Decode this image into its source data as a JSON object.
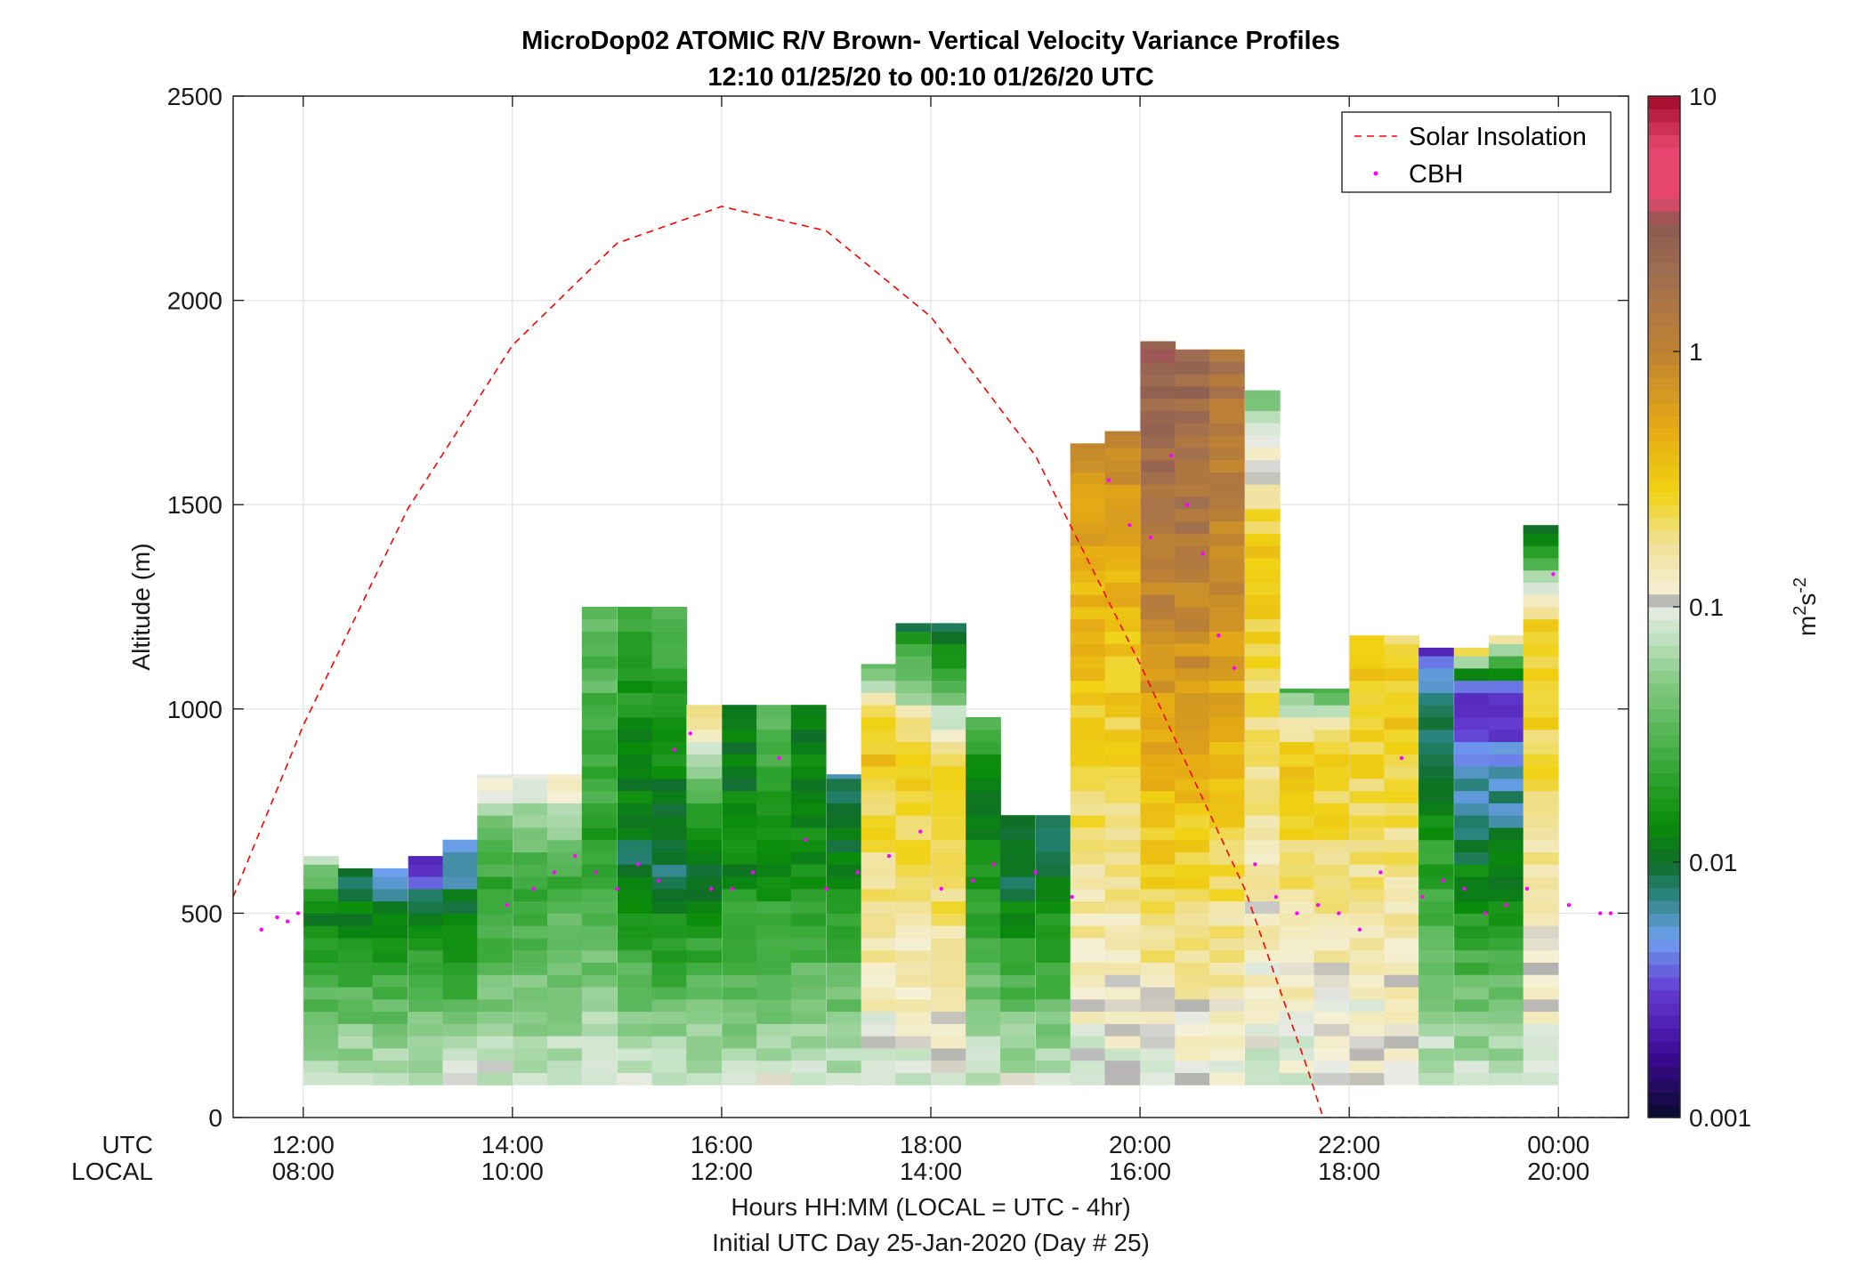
{
  "chart_data": {
    "type": "heatmap",
    "title": "MicroDop02 ATOMIC R/V Brown- Vertical Velocity Variance Profiles",
    "subtitle": "12:10 01/25/20 to 00:10 01/26/20  UTC",
    "ylabel": "Altitude (m)",
    "ylim": [
      0,
      2500
    ],
    "yticks": [
      0,
      500,
      1000,
      1500,
      2000,
      2500
    ],
    "xlim_hours": [
      11.33,
      24.67
    ],
    "xticks_hours": [
      12,
      14,
      16,
      18,
      20,
      22,
      24
    ],
    "xtick_labels_utc": [
      "12:00",
      "14:00",
      "16:00",
      "18:00",
      "20:00",
      "22:00",
      "00:00"
    ],
    "xtick_labels_local": [
      "08:00",
      "10:00",
      "12:00",
      "14:00",
      "16:00",
      "18:00",
      "20:00"
    ],
    "xaxis_row_labels": [
      "UTC",
      "LOCAL"
    ],
    "xlabel": "Hours HH:MM  (LOCAL = UTC - 4hr)",
    "footer": "Initial UTC Day 25-Jan-2020 (Day # 25)",
    "legend": {
      "placement": "top-right",
      "entries": [
        {
          "label": "Solar Insolation",
          "style": "dashed",
          "color": "#ff0000"
        },
        {
          "label": "CBH",
          "style": "dot",
          "color": "#ff00ff"
        }
      ]
    },
    "colorbar": {
      "scale": "log",
      "range": [
        0.001,
        10
      ],
      "ticks": [
        0.001,
        0.01,
        0.1,
        1,
        10
      ],
      "tick_labels": [
        "0.001",
        "0.01",
        "0.1",
        "1",
        "10"
      ],
      "units_main": "m",
      "units_sup1": "2",
      "units_mid": "s",
      "units_sup2": "-2"
    },
    "grid": true,
    "solar_insolation": {
      "units": "altitude-scaled",
      "points": [
        [
          11.33,
          540
        ],
        [
          12,
          960
        ],
        [
          13,
          1490
        ],
        [
          14,
          1890
        ],
        [
          15,
          2140
        ],
        [
          16,
          2230
        ],
        [
          17,
          2170
        ],
        [
          18,
          1960
        ],
        [
          19,
          1620
        ],
        [
          20,
          1110
        ],
        [
          21,
          560
        ],
        [
          21.6,
          120
        ],
        [
          21.75,
          0
        ],
        [
          24.67,
          0
        ]
      ]
    },
    "profile_columns": [
      {
        "center_h": 12.17,
        "base_m": 80,
        "top_m": 640,
        "peak_m": 500,
        "peak_log": -1.9,
        "top_log": -1.1
      },
      {
        "center_h": 12.5,
        "base_m": 80,
        "top_m": 610,
        "peak_m": 560,
        "peak_log": -2.05,
        "top_log": -2.0
      },
      {
        "center_h": 12.83,
        "base_m": 80,
        "top_m": 610,
        "peak_m": 520,
        "peak_log": -2.0,
        "top_log": -2.3
      },
      {
        "center_h": 13.17,
        "base_m": 80,
        "top_m": 640,
        "peak_m": 500,
        "peak_log": -1.9,
        "top_log": -2.7
      },
      {
        "center_h": 13.5,
        "base_m": 80,
        "top_m": 680,
        "peak_m": 500,
        "peak_log": -1.95,
        "top_log": -2.3
      },
      {
        "center_h": 13.83,
        "base_m": 80,
        "top_m": 840,
        "peak_m": 560,
        "peak_log": -1.7,
        "top_log": -0.95
      },
      {
        "center_h": 14.17,
        "base_m": 80,
        "top_m": 840,
        "peak_m": 560,
        "peak_log": -1.6,
        "top_log": -1.05
      },
      {
        "center_h": 14.5,
        "base_m": 80,
        "top_m": 840,
        "peak_m": 600,
        "peak_log": -1.6,
        "top_log": -0.9
      },
      {
        "center_h": 14.83,
        "base_m": 80,
        "top_m": 1250,
        "peak_m": 640,
        "peak_log": -1.7,
        "top_log": -1.4
      },
      {
        "center_h": 15.17,
        "base_m": 80,
        "top_m": 1250,
        "peak_m": 640,
        "peak_log": -2.0,
        "top_log": -1.6
      },
      {
        "center_h": 15.5,
        "base_m": 80,
        "top_m": 1250,
        "peak_m": 620,
        "peak_log": -2.1,
        "top_log": -1.5
      },
      {
        "center_h": 15.83,
        "base_m": 80,
        "top_m": 1010,
        "peak_m": 640,
        "peak_log": -2.05,
        "top_log": -0.6
      },
      {
        "center_h": 16.17,
        "base_m": 80,
        "top_m": 1010,
        "peak_m": 640,
        "peak_log": -1.9,
        "top_log": -1.9
      },
      {
        "center_h": 16.5,
        "base_m": 80,
        "top_m": 1010,
        "peak_m": 600,
        "peak_log": -1.8,
        "top_log": -1.5
      },
      {
        "center_h": 16.83,
        "base_m": 80,
        "top_m": 1010,
        "peak_m": 600,
        "peak_log": -1.8,
        "top_log": -1.9
      },
      {
        "center_h": 17.17,
        "base_m": 80,
        "top_m": 840,
        "peak_m": 600,
        "peak_log": -1.9,
        "top_log": -2.1
      },
      {
        "center_h": 17.5,
        "base_m": 80,
        "top_m": 1110,
        "peak_m": 960,
        "peak_log": -0.45,
        "top_log": -1.4
      },
      {
        "center_h": 17.83,
        "base_m": 80,
        "top_m": 1210,
        "peak_m": 900,
        "peak_log": -0.5,
        "top_log": -2.0
      },
      {
        "center_h": 18.17,
        "base_m": 80,
        "top_m": 1210,
        "peak_m": 840,
        "peak_log": -0.45,
        "top_log": -2.1
      },
      {
        "center_h": 18.5,
        "base_m": 80,
        "top_m": 980,
        "peak_m": 800,
        "peak_log": -2.05,
        "top_log": -1.5
      },
      {
        "center_h": 18.83,
        "base_m": 80,
        "top_m": 740,
        "peak_m": 600,
        "peak_log": -2.05,
        "top_log": -2.0
      },
      {
        "center_h": 19.17,
        "base_m": 80,
        "top_m": 740,
        "peak_m": 600,
        "peak_log": -2.0,
        "top_log": -2.0
      },
      {
        "center_h": 19.5,
        "base_m": 80,
        "top_m": 1650,
        "peak_m": 1300,
        "peak_log": -0.35,
        "top_log": -0.1
      },
      {
        "center_h": 19.83,
        "base_m": 80,
        "top_m": 1680,
        "peak_m": 1250,
        "peak_log": -0.4,
        "top_log": 0.0
      },
      {
        "center_h": 20.17,
        "base_m": 80,
        "top_m": 1900,
        "peak_m": 1500,
        "peak_log": 0.2,
        "top_log": 0.5
      },
      {
        "center_h": 20.5,
        "base_m": 80,
        "top_m": 1880,
        "peak_m": 1500,
        "peak_log": 0.2,
        "top_log": 0.4
      },
      {
        "center_h": 20.83,
        "base_m": 80,
        "top_m": 1880,
        "peak_m": 1400,
        "peak_log": 0.0,
        "top_log": 0.2
      },
      {
        "center_h": 21.17,
        "base_m": 80,
        "top_m": 1780,
        "peak_m": 1400,
        "peak_log": -0.5,
        "top_log": -1.3
      },
      {
        "center_h": 21.5,
        "base_m": 80,
        "top_m": 1050,
        "peak_m": 900,
        "peak_log": -0.5,
        "top_log": -1.5
      },
      {
        "center_h": 21.83,
        "base_m": 80,
        "top_m": 1050,
        "peak_m": 900,
        "peak_log": -0.5,
        "top_log": -1.5
      },
      {
        "center_h": 22.17,
        "base_m": 80,
        "top_m": 1180,
        "peak_m": 1000,
        "peak_log": -0.5,
        "top_log": -0.6
      },
      {
        "center_h": 22.5,
        "base_m": 80,
        "top_m": 1180,
        "peak_m": 1000,
        "peak_log": -0.5,
        "top_log": -0.6
      },
      {
        "center_h": 22.83,
        "base_m": 80,
        "top_m": 1150,
        "peak_m": 900,
        "peak_log": -2.0,
        "top_log": -2.5
      },
      {
        "center_h": 23.17,
        "base_m": 80,
        "top_m": 1150,
        "peak_m": 1040,
        "peak_log": -2.6,
        "top_log": -0.6
      },
      {
        "center_h": 23.5,
        "base_m": 80,
        "top_m": 1180,
        "peak_m": 1040,
        "peak_log": -2.6,
        "top_log": -0.6
      },
      {
        "center_h": 23.83,
        "base_m": 80,
        "top_m": 1450,
        "peak_m": 1200,
        "peak_log": -0.5,
        "top_log": -2.0
      }
    ],
    "cbh_points_m": [
      [
        11.6,
        460
      ],
      [
        11.75,
        490
      ],
      [
        11.85,
        480
      ],
      [
        11.95,
        500
      ],
      [
        13.95,
        520
      ],
      [
        14.2,
        560
      ],
      [
        14.4,
        600
      ],
      [
        14.6,
        640
      ],
      [
        14.8,
        600
      ],
      [
        15.0,
        560
      ],
      [
        15.2,
        620
      ],
      [
        15.4,
        580
      ],
      [
        15.55,
        900
      ],
      [
        15.7,
        940
      ],
      [
        15.9,
        560
      ],
      [
        16.1,
        560
      ],
      [
        16.3,
        600
      ],
      [
        16.55,
        880
      ],
      [
        16.8,
        680
      ],
      [
        17.0,
        560
      ],
      [
        17.3,
        600
      ],
      [
        17.6,
        640
      ],
      [
        17.9,
        700
      ],
      [
        18.1,
        560
      ],
      [
        18.4,
        580
      ],
      [
        18.6,
        620
      ],
      [
        19.0,
        600
      ],
      [
        19.35,
        540
      ],
      [
        19.7,
        1560
      ],
      [
        19.9,
        1450
      ],
      [
        20.1,
        1420
      ],
      [
        20.3,
        1620
      ],
      [
        20.45,
        1500
      ],
      [
        20.6,
        1380
      ],
      [
        20.75,
        1180
      ],
      [
        20.9,
        1100
      ],
      [
        21.1,
        620
      ],
      [
        21.3,
        540
      ],
      [
        21.5,
        500
      ],
      [
        21.7,
        520
      ],
      [
        21.9,
        500
      ],
      [
        22.1,
        460
      ],
      [
        22.3,
        600
      ],
      [
        22.5,
        880
      ],
      [
        22.7,
        540
      ],
      [
        22.9,
        580
      ],
      [
        23.1,
        560
      ],
      [
        23.3,
        500
      ],
      [
        23.5,
        520
      ],
      [
        23.7,
        560
      ],
      [
        23.95,
        1330
      ],
      [
        24.1,
        520
      ],
      [
        24.4,
        500
      ],
      [
        24.5,
        500
      ]
    ]
  }
}
